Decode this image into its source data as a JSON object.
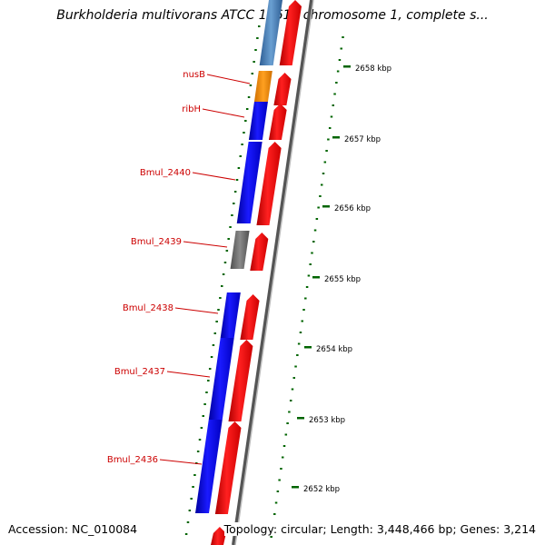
{
  "title": "Burkholderia multivorans ATCC 17616 chromosome 1, complete s...",
  "accession": "Accession: NC_010084",
  "topology": "Topology: circular; Length: 3,448,466 bp; Genes: 3,214",
  "colors": {
    "forward_strand_gene": "#ff0000",
    "reverse_cds": "#0000ff",
    "rna_gene": "#ff8c00",
    "pseudo_or_other": "#707070",
    "hypothetical": "#4f81bd",
    "backbone": "#888888",
    "gc_ticks": "#006400",
    "label_color": "#cc0000"
  },
  "gene_labels": [
    "nusB",
    "ribH",
    "Bmul_2440",
    "Bmul_2439",
    "Bmul_2438",
    "Bmul_2437",
    "Bmul_2436"
  ],
  "kbp_labels": [
    "2658 kbp",
    "2657 kbp",
    "2656 kbp",
    "2655 kbp",
    "2654 kbp",
    "2653 kbp",
    "2652 kbp"
  ]
}
